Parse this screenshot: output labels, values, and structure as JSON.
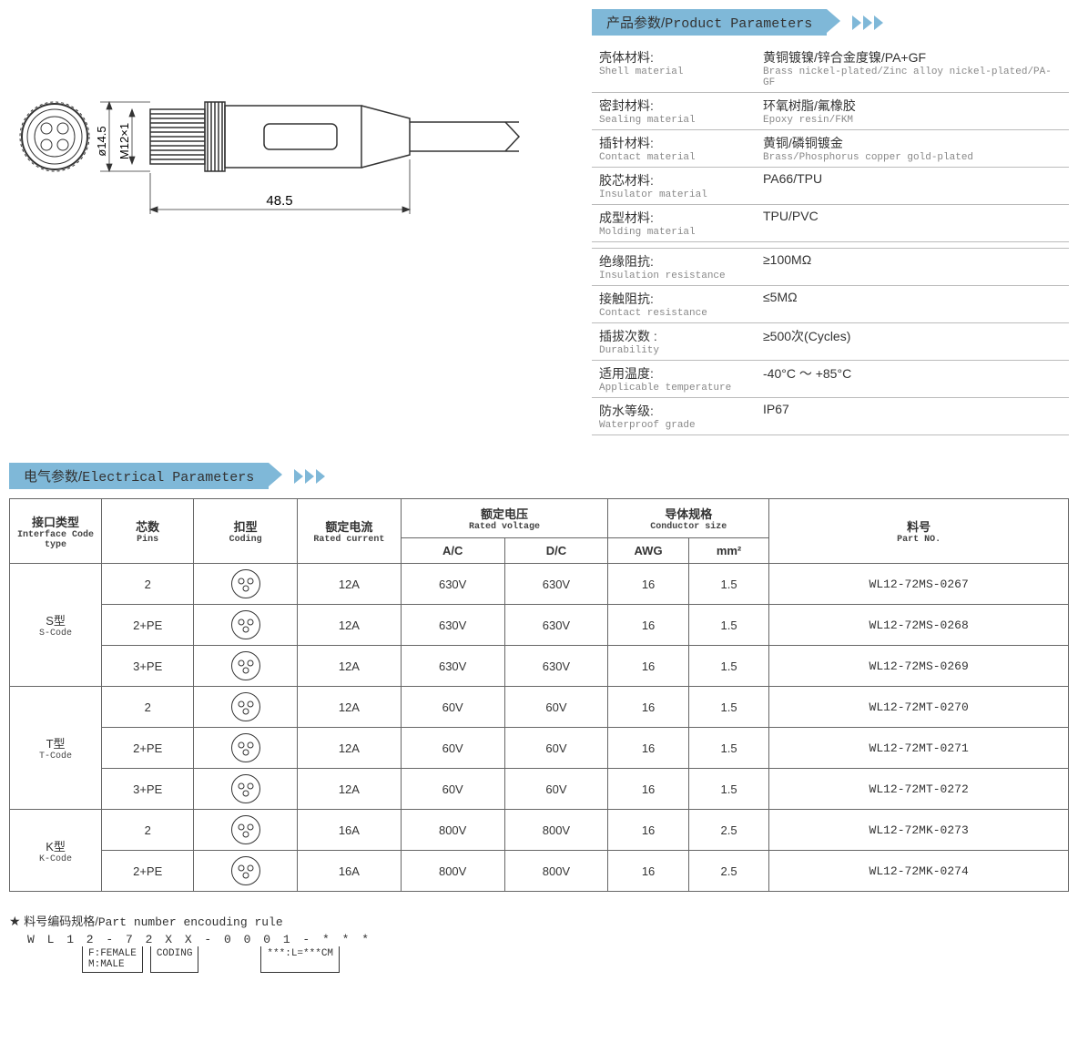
{
  "diagram": {
    "dim_diameter": "ø14.5",
    "dim_thread": "M12×1",
    "dim_length": "48.5"
  },
  "product_params_header": {
    "cn": "产品参数",
    "en": "Product Parameters",
    "sep": "/"
  },
  "product_params": [
    {
      "label_cn": "壳体材料:",
      "label_en": "Shell material",
      "value_cn": "黄铜镀镍/锌合金度镍/PA+GF",
      "value_en": "Brass nickel-plated/Zinc alloy nickel-plated/PA-GF"
    },
    {
      "label_cn": "密封材料:",
      "label_en": "Sealing material",
      "value_cn": "环氧树脂/氟橡胶",
      "value_en": "Epoxy resin/FKM"
    },
    {
      "label_cn": "插针材料:",
      "label_en": "Contact material",
      "value_cn": "黄铜/磷铜镀金",
      "value_en": "Brass/Phosphorus copper gold-plated"
    },
    {
      "label_cn": "胶芯材料:",
      "label_en": "Insulator material",
      "value_cn": "PA66/TPU",
      "value_en": ""
    },
    {
      "label_cn": "成型材料:",
      "label_en": "Molding material",
      "value_cn": "TPU/PVC",
      "value_en": ""
    },
    {
      "label_cn": "绝缘阻抗:",
      "label_en": "Insulation resistance",
      "value_cn": "≥100MΩ",
      "value_en": ""
    },
    {
      "label_cn": "接触阻抗:",
      "label_en": "Contact resistance",
      "value_cn": "≤5MΩ",
      "value_en": ""
    },
    {
      "label_cn": "插拔次数 :",
      "label_en": "Durability",
      "value_cn": "≥500次(Cycles)",
      "value_en": ""
    },
    {
      "label_cn": "适用温度:",
      "label_en": "Applicable temperature",
      "value_cn": "-40°C ～ +85°C",
      "value_en": ""
    },
    {
      "label_cn": "防水等级:",
      "label_en": "Waterproof grade",
      "value_cn": "IP67",
      "value_en": ""
    }
  ],
  "elec_header": {
    "cn": "电气参数",
    "en": "Electrical Parameters",
    "sep": "/"
  },
  "table_headers": {
    "interface": {
      "cn": "接口类型",
      "en": "Interface Code type"
    },
    "pins": {
      "cn": "芯数",
      "en": "Pins"
    },
    "coding": {
      "cn": "扣型",
      "en": "Coding"
    },
    "current": {
      "cn": "额定电流",
      "en": "Rated current"
    },
    "voltage": {
      "cn": "额定电压",
      "en": "Rated voltage"
    },
    "conductor": {
      "cn": "导体规格",
      "en": "Conductor size"
    },
    "partno": {
      "cn": "料号",
      "en": "Part NO."
    },
    "ac": "A/C",
    "dc": "D/C",
    "awg": "AWG",
    "mm2": "mm²"
  },
  "table_groups": [
    {
      "type_cn": "S型",
      "type_en": "S-Code",
      "rows": [
        {
          "pins": "2",
          "current": "12A",
          "ac": "630V",
          "dc": "630V",
          "awg": "16",
          "mm2": "1.5",
          "partno": "WL12-72MS-0267",
          "coding_pins": "1,3"
        },
        {
          "pins": "2+PE",
          "current": "12A",
          "ac": "630V",
          "dc": "630V",
          "awg": "16",
          "mm2": "1.5",
          "partno": "WL12-72MS-0268",
          "coding_pins": "1,PE,3"
        },
        {
          "pins": "3+PE",
          "current": "12A",
          "ac": "630V",
          "dc": "630V",
          "awg": "16",
          "mm2": "1.5",
          "partno": "WL12-72MS-0269",
          "coding_pins": "1,PE,2,3"
        }
      ]
    },
    {
      "type_cn": "T型",
      "type_en": "T-Code",
      "rows": [
        {
          "pins": "2",
          "current": "12A",
          "ac": "60V",
          "dc": "60V",
          "awg": "16",
          "mm2": "1.5",
          "partno": "WL12-72MT-0270",
          "coding_pins": "1,3"
        },
        {
          "pins": "2+PE",
          "current": "12A",
          "ac": "60V",
          "dc": "60V",
          "awg": "16",
          "mm2": "1.5",
          "partno": "WL12-72MT-0271",
          "coding_pins": "1,PE,3"
        },
        {
          "pins": "3+PE",
          "current": "12A",
          "ac": "60V",
          "dc": "60V",
          "awg": "16",
          "mm2": "1.5",
          "partno": "WL12-72MT-0272",
          "coding_pins": "1,PE,2,3"
        }
      ]
    },
    {
      "type_cn": "K型",
      "type_en": "K-Code",
      "rows": [
        {
          "pins": "2",
          "current": "16A",
          "ac": "800V",
          "dc": "800V",
          "awg": "16",
          "mm2": "2.5",
          "partno": "WL12-72MK-0273",
          "coding_pins": ""
        },
        {
          "pins": "2+PE",
          "current": "16A",
          "ac": "800V",
          "dc": "800V",
          "awg": "16",
          "mm2": "2.5",
          "partno": "WL12-72MK-0274",
          "coding_pins": "PE"
        }
      ]
    }
  ],
  "footer": {
    "title_cn": "料号编码规格",
    "title_en": "Part number encouding rule",
    "rule": "W L 1 2 - 7 2 X X - 0 0 0 1 - * * *",
    "female": "F:FEMALE",
    "male": "M:MALE",
    "coding": "CODING",
    "length": "***:L=***CM"
  },
  "colors": {
    "header_bg": "#7fb8d8",
    "border": "#666666",
    "text": "#333333",
    "subtext": "#888888"
  }
}
